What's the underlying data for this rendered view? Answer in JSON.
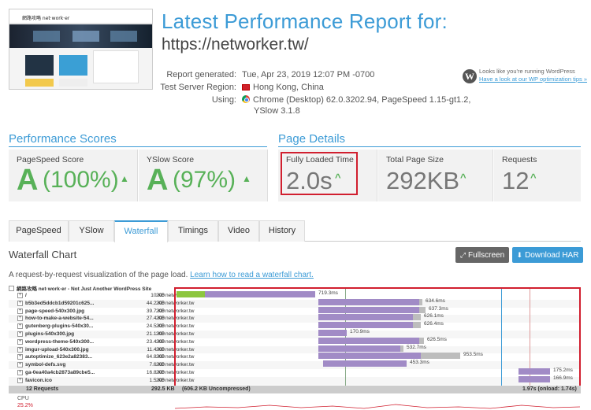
{
  "header": {
    "title": "Latest Performance Report for:",
    "url": "https://networker.tw/"
  },
  "thumbnail": {
    "site_name": "網路攻略 net·work·er"
  },
  "report": {
    "generated_label": "Report generated:",
    "generated_value": "Tue, Apr 23, 2019 12:07 PM -0700",
    "region_label": "Test Server Region:",
    "region_value": "Hong Kong, China",
    "using_label": "Using:",
    "using_value_line1": "Chrome (Desktop) 62.0.3202.94, PageSpeed 1.15-gt1.2,",
    "using_value_line2": "YSlow 3.1.8"
  },
  "wordpress_notice": {
    "text": "Looks like you're running WordPress",
    "link": "Have a look at our WP optimization tips »"
  },
  "performance_scores": {
    "heading": "Performance Scores",
    "pagespeed": {
      "label": "PageSpeed Score",
      "grade": "A",
      "value": "(100%)"
    },
    "yslow": {
      "label": "YSlow Score",
      "grade": "A",
      "value": "(97%)"
    }
  },
  "page_details": {
    "heading": "Page Details",
    "fully_loaded": {
      "label": "Fully Loaded Time",
      "value": "2.0s"
    },
    "page_size": {
      "label": "Total Page Size",
      "value": "292KB"
    },
    "requests": {
      "label": "Requests",
      "value": "12"
    }
  },
  "tabs": [
    "PageSpeed",
    "YSlow",
    "Waterfall",
    "Timings",
    "Video",
    "History"
  ],
  "active_tab": "Waterfall",
  "waterfall": {
    "title": "Waterfall Chart",
    "fullscreen_label": "Fullscreen",
    "download_label": "Download HAR",
    "description": "A request-by-request visualization of the page load.",
    "description_link": "Learn how to read a waterfall chart.",
    "site_row": "網路攻略 net·work·er - Not Just Another WordPress Site",
    "rows": [
      {
        "name": "/",
        "size": "10 KB",
        "status": "200",
        "domain": "networker.tw",
        "time": "719.3ms"
      },
      {
        "name": "b5b3ed5ddcb1d59201c625...",
        "size": "44.2 KB",
        "status": "200",
        "domain": "networker.tw",
        "time": "634.6ms"
      },
      {
        "name": "page-speed-540x300.jpg",
        "size": "39.7 KB",
        "status": "200",
        "domain": "networker.tw",
        "time": "637.3ms"
      },
      {
        "name": "how-to-make-a-website-54...",
        "size": "27.4 KB",
        "status": "200",
        "domain": "networker.tw",
        "time": "626.1ms"
      },
      {
        "name": "gutenberg-plugins-540x30...",
        "size": "24.5 KB",
        "status": "200",
        "domain": "networker.tw",
        "time": "626.4ms"
      },
      {
        "name": "plugins-540x300.jpg",
        "size": "21.1 KB",
        "status": "200",
        "domain": "networker.tw",
        "time": "170.9ms"
      },
      {
        "name": "wordpress-theme-540x300...",
        "size": "23.4 KB",
        "status": "200",
        "domain": "networker.tw",
        "time": "626.5ms"
      },
      {
        "name": "imgur-upload-540x300.jpg",
        "size": "11.4 KB",
        "status": "200",
        "domain": "networker.tw",
        "time": "532.7ms"
      },
      {
        "name": "autoptimize_623e2a82383...",
        "size": "64.8 KB",
        "status": "200",
        "domain": "networker.tw",
        "time": "953.5ms"
      },
      {
        "name": "symbol-defs.svg",
        "size": "7.6 KB",
        "status": "200",
        "domain": "networker.tw",
        "time": "453.3ms"
      },
      {
        "name": "ga-0ea40a4cb2873a89cbe5...",
        "size": "16.8 KB",
        "status": "200",
        "domain": "networker.tw",
        "time": "175.2ms"
      },
      {
        "name": "favicon.ico",
        "size": "1.5 KB",
        "status": "200",
        "domain": "networker.tw",
        "time": "166.9ms"
      }
    ],
    "total_requests": "12 Requests",
    "total_size": "292.5 KB",
    "total_uncompressed": "(606.2 KB Uncompressed)",
    "total_time": "1.97s (onload: 1.74s)",
    "cpu_label": "CPU",
    "cpu_value": "25.2%"
  },
  "colors": {
    "accent": "#3c9bd6",
    "grade_green": "#58b158",
    "highlight_red": "#d11f2f",
    "bar_purple": "#a18bc6",
    "bar_gray": "#bdbdbd"
  }
}
